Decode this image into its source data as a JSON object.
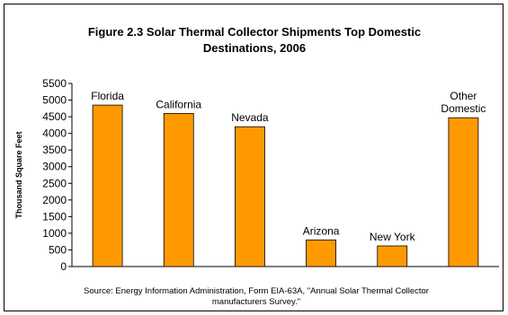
{
  "title_line1": "Figure 2.3  Solar Thermal Collector Shipments Top Domestic",
  "title_line2": "Destinations, 2006",
  "source_line1": "Source: Energy Information Administration, Form EIA-63A, \"Annual Solar Thermal Collector",
  "source_line2": "manufacturers Survey.\"",
  "colors": {
    "bar": "#FF9900",
    "bar_stroke": "#000000",
    "axis": "#000000"
  },
  "chart_data": {
    "type": "bar",
    "title": "Figure 2.3  Solar Thermal Collector Shipments Top Domestic Destinations, 2006",
    "xlabel": "",
    "ylabel": "Thousand Square Feet",
    "ylim": [
      0,
      5500
    ],
    "yticks": [
      0,
      500,
      1000,
      1500,
      2000,
      2500,
      3000,
      3500,
      4000,
      4500,
      5000,
      5500
    ],
    "grid": false,
    "legend": false,
    "categories": [
      "Florida",
      "California",
      "Nevada",
      "Arizona",
      "New York",
      "Other Domestic"
    ],
    "category_labels": [
      [
        "Florida"
      ],
      [
        "California"
      ],
      [
        "Nevada"
      ],
      [
        "Arizona"
      ],
      [
        "New York"
      ],
      [
        "Other",
        "Domestic"
      ]
    ],
    "values": [
      4850,
      4600,
      4200,
      800,
      620,
      4470
    ]
  }
}
